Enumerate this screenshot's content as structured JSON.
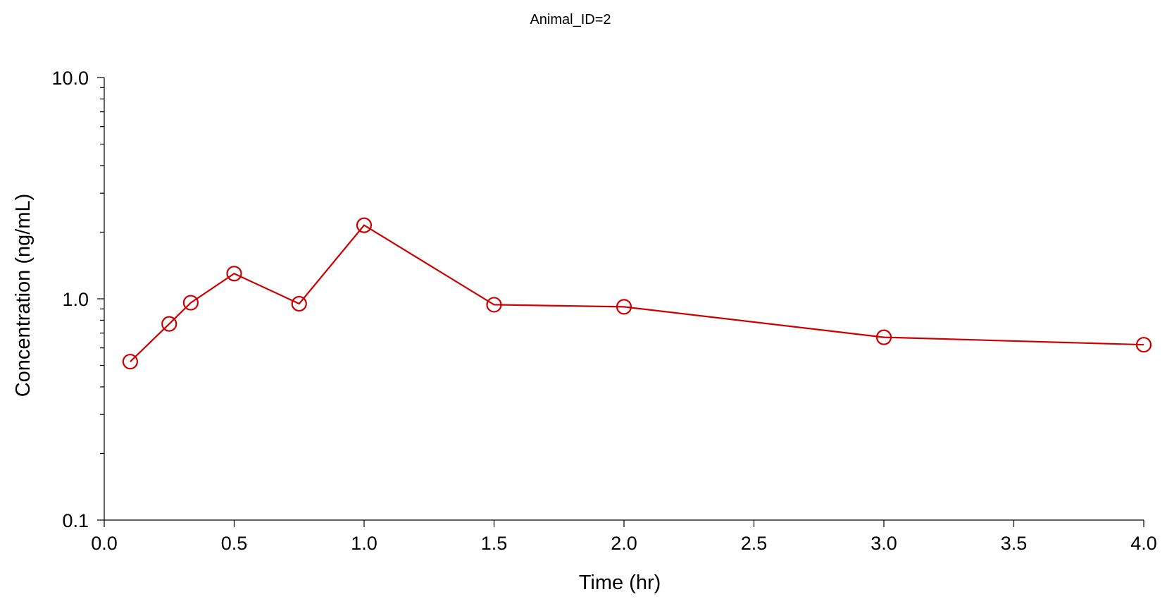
{
  "chart_data": {
    "type": "line",
    "title": "Animal_ID=2",
    "xlabel": "Time (hr)",
    "ylabel": "Concentration (ng/mL)",
    "xlim": [
      0.0,
      4.0
    ],
    "ylim": [
      0.1,
      10.0
    ],
    "y_scale": "log",
    "x_ticks": [
      "0.0",
      "0.5",
      "1.0",
      "1.5",
      "2.0",
      "2.5",
      "3.0",
      "3.5",
      "4.0"
    ],
    "y_ticks": [
      "0.1",
      "1.0",
      "10.0"
    ],
    "grid": false,
    "legend": "none",
    "series": [
      {
        "color": "#cc0000",
        "marker": "open-circle",
        "x": [
          0.1,
          0.25,
          0.333,
          0.5,
          0.75,
          1.0,
          1.5,
          2.0,
          3.0,
          4.0
        ],
        "y": [
          0.52,
          0.77,
          0.96,
          1.3,
          0.95,
          2.15,
          0.94,
          0.92,
          0.67,
          0.62
        ]
      }
    ]
  }
}
